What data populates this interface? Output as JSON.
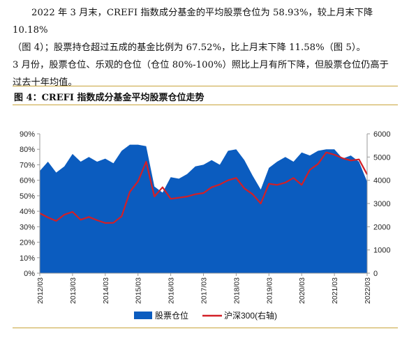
{
  "paragraph": {
    "line1": "2022 年 3 月末，CREFI 指数成分基金的平均股票仓位为 58.93%，较上月末下降 10.18%",
    "line2": "（图 4）；股票持仓超过五成的基金比例为 67.52%，比上月末下降 11.58%（图 5）。",
    "line3": "3 月份，股票仓位、乐观的仓位（仓位 80%-100%）照比上月有所下降，但股票仓位仍高于",
    "line4": "过去十年均值。"
  },
  "figure_title": "图 4：CREFI 指数成分基金平均股票仓位走势",
  "colors": {
    "area": "#0b5cbf",
    "line": "#d31f26",
    "rule": "#c9a43a"
  },
  "chart_data": {
    "type": "area",
    "x": [
      "2012/03",
      "2012/06",
      "2012/09",
      "2012/12",
      "2013/03",
      "2013/06",
      "2013/09",
      "2013/12",
      "2014/03",
      "2014/06",
      "2014/09",
      "2014/12",
      "2015/03",
      "2015/06",
      "2015/09",
      "2015/12",
      "2016/03",
      "2016/06",
      "2016/09",
      "2016/12",
      "2017/03",
      "2017/06",
      "2017/09",
      "2017/12",
      "2018/03",
      "2018/06",
      "2018/09",
      "2018/12",
      "2019/03",
      "2019/06",
      "2019/09",
      "2019/12",
      "2020/03",
      "2020/06",
      "2020/09",
      "2020/12",
      "2021/03",
      "2021/06",
      "2021/09",
      "2021/12",
      "2022/03"
    ],
    "xticks": [
      "2012/03",
      "2013/03",
      "2014/03",
      "2015/03",
      "2016/03",
      "2017/03",
      "2018/03",
      "2019/03",
      "2020/03",
      "2021/03",
      "2022/03"
    ],
    "series": [
      {
        "name": "股票仓位",
        "axis": "left",
        "style": "area",
        "values": [
          66,
          72,
          65,
          69,
          77,
          72,
          75,
          72,
          74,
          71,
          79,
          83,
          83,
          82,
          56,
          52,
          62,
          61,
          64,
          69,
          70,
          73,
          70,
          79,
          80,
          73,
          63,
          54,
          68,
          72,
          75,
          72,
          78,
          76,
          79,
          80,
          80,
          74,
          76,
          72,
          59
        ]
      },
      {
        "name": "沪深300(右轴)",
        "axis": "right",
        "style": "line",
        "values": [
          2580,
          2400,
          2250,
          2520,
          2640,
          2300,
          2420,
          2280,
          2160,
          2170,
          2450,
          3500,
          3950,
          4800,
          3300,
          3700,
          3200,
          3250,
          3300,
          3400,
          3450,
          3700,
          3820,
          4000,
          4100,
          3650,
          3400,
          3000,
          3850,
          3800,
          3900,
          4100,
          3800,
          4450,
          4700,
          5200,
          5100,
          4950,
          4850,
          4900,
          4250
        ]
      }
    ],
    "yleft": {
      "ticks": [
        "0%",
        "10%",
        "20%",
        "30%",
        "40%",
        "50%",
        "60%",
        "70%",
        "80%",
        "90%"
      ],
      "min": 0,
      "max": 90
    },
    "yright": {
      "ticks": [
        "0",
        "1000",
        "2000",
        "3000",
        "4000",
        "5000",
        "6000"
      ],
      "min": 0,
      "max": 6000
    },
    "legend": [
      "股票仓位",
      "沪深300(右轴)"
    ],
    "grid": false,
    "legend_position": "bottom"
  }
}
